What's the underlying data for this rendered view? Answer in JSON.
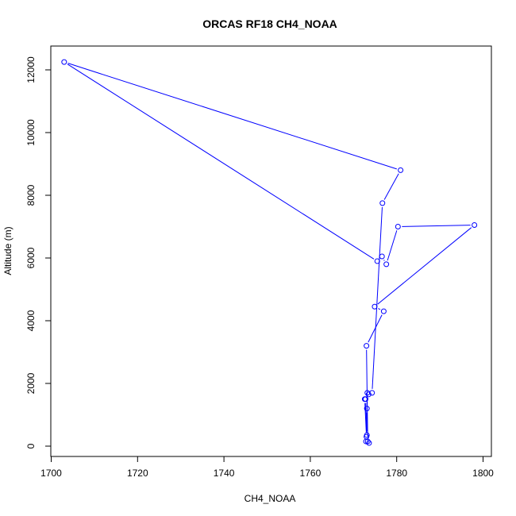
{
  "chart_data": {
    "type": "line",
    "title": "ORCAS RF18 CH4_NOAA",
    "xlabel": "CH4_NOAA",
    "ylabel": "Altitude (m)",
    "xlim": [
      1700,
      1800
    ],
    "ylim": [
      0,
      12300
    ],
    "x_ticks": [
      1700,
      1720,
      1740,
      1760,
      1780,
      1800
    ],
    "y_ticks": [
      0,
      2000,
      4000,
      6000,
      8000,
      10000,
      12000
    ],
    "grid": false,
    "line_color": "#0000ff",
    "marker": "open-circle",
    "series": [
      {
        "x": [
          1773.6,
          1772.9,
          1773.1,
          1772.8,
          1772.6,
          1773.0,
          1773.1,
          1773.2,
          1773.5,
          1774.3,
          1776.7,
          1780.9,
          1703.0,
          1775.5,
          1776.6,
          1777.6,
          1780.3,
          1798.0,
          1774.9,
          1777.0,
          1773.0,
          1773.3
        ],
        "y": [
          100,
          150,
          350,
          1500,
          1500,
          300,
          1200,
          1700,
          1650,
          1700,
          7750,
          8800,
          12250,
          5900,
          6050,
          5800,
          7000,
          7050,
          4450,
          4300,
          3200,
          150
        ]
      }
    ]
  }
}
